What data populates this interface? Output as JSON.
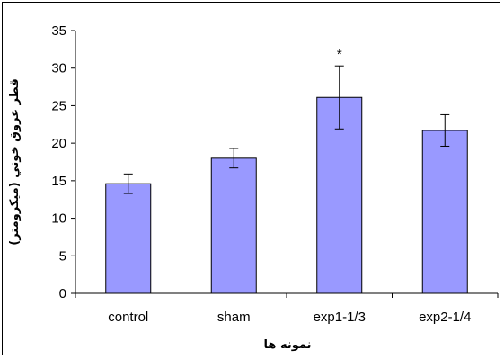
{
  "chart_data": {
    "type": "bar",
    "title": "",
    "xlabel": "نمونه ها",
    "ylabel": "قطر عروق خوني (ميكرومتر)",
    "categories": [
      "control",
      "sham",
      "exp1-1/3",
      "exp2-1/4"
    ],
    "series": [
      {
        "values": [
          14.6,
          18.0,
          26.1,
          21.7
        ],
        "error": [
          1.3,
          1.3,
          4.2,
          2.1
        ]
      }
    ],
    "annotations": [
      {
        "category": "exp1-1/3",
        "text": "*"
      }
    ],
    "ylim": [
      0,
      35
    ],
    "yticks": [
      0,
      5,
      10,
      15,
      20,
      25,
      30,
      35
    ],
    "grid": false,
    "legend": "none",
    "colors": {
      "bar_fill": "#9999ff",
      "bar_stroke": "#000000",
      "axis": "#000000"
    }
  }
}
